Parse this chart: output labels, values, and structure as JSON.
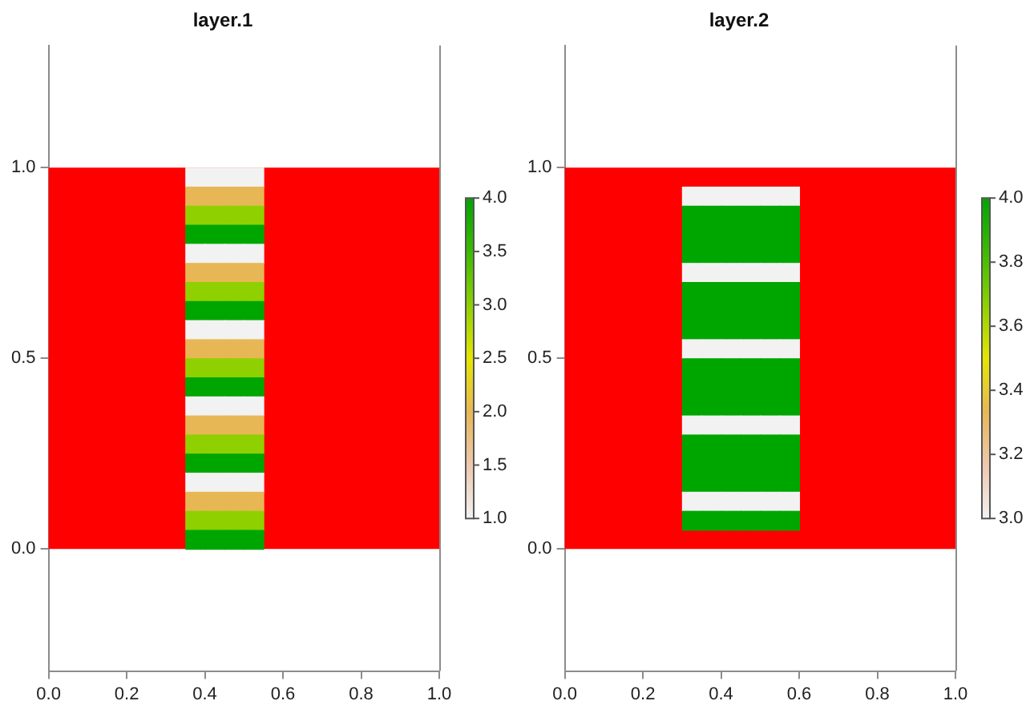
{
  "chart_data": [
    {
      "type": "heatmap",
      "title": "layer.1",
      "colors": [
        "#f2f2f2",
        "#eec8b0",
        "#e8b755",
        "#e6e600",
        "#8fd100",
        "#3dbb00",
        "#00a600"
      ],
      "bands": [
        {
          "axis": "y",
          "from": 0,
          "to": 1,
          "color": "#ff0000"
        }
      ],
      "x": [
        0.025,
        0.075,
        0.125,
        0.175,
        0.225,
        0.275,
        0.325,
        0.375,
        0.425,
        0.475,
        0.525,
        0.575,
        0.625,
        0.675,
        0.725,
        0.775,
        0.825,
        0.875,
        0.925,
        0.975
      ],
      "y": [
        0.975,
        0.925,
        0.875,
        0.825,
        0.775,
        0.725,
        0.675,
        0.625,
        0.575,
        0.525,
        0.475,
        0.425,
        0.375,
        0.325,
        0.275,
        0.225,
        0.175,
        0.125,
        0.075,
        0.025
      ],
      "cells": [
        [
          null,
          null,
          null,
          null,
          null,
          null,
          null,
          1,
          1,
          1,
          1,
          null,
          null,
          null,
          null,
          null,
          null,
          null,
          null,
          null
        ],
        [
          null,
          null,
          null,
          null,
          null,
          null,
          null,
          2,
          2,
          2,
          2,
          null,
          null,
          null,
          null,
          null,
          null,
          null,
          null,
          null
        ],
        [
          null,
          null,
          null,
          null,
          null,
          null,
          null,
          3,
          3,
          3,
          3,
          null,
          null,
          null,
          null,
          null,
          null,
          null,
          null,
          null
        ],
        [
          null,
          null,
          null,
          null,
          null,
          null,
          null,
          4,
          4,
          4,
          4,
          null,
          null,
          null,
          null,
          null,
          null,
          null,
          null,
          null
        ],
        [
          null,
          null,
          null,
          null,
          null,
          null,
          null,
          1,
          1,
          1,
          1,
          null,
          null,
          null,
          null,
          null,
          null,
          null,
          null,
          null
        ],
        [
          null,
          null,
          null,
          null,
          null,
          null,
          null,
          2,
          2,
          2,
          2,
          null,
          null,
          null,
          null,
          null,
          null,
          null,
          null,
          null
        ],
        [
          null,
          null,
          null,
          null,
          null,
          null,
          null,
          3,
          3,
          3,
          3,
          null,
          null,
          null,
          null,
          null,
          null,
          null,
          null,
          null
        ],
        [
          null,
          null,
          null,
          null,
          null,
          null,
          null,
          4,
          4,
          4,
          4,
          null,
          null,
          null,
          null,
          null,
          null,
          null,
          null,
          null
        ],
        [
          null,
          null,
          null,
          null,
          null,
          null,
          null,
          1,
          1,
          1,
          1,
          null,
          null,
          null,
          null,
          null,
          null,
          null,
          null,
          null
        ],
        [
          null,
          null,
          null,
          null,
          null,
          null,
          null,
          2,
          2,
          2,
          2,
          null,
          null,
          null,
          null,
          null,
          null,
          null,
          null,
          null
        ],
        [
          null,
          null,
          null,
          null,
          null,
          null,
          null,
          3,
          3,
          3,
          3,
          null,
          null,
          null,
          null,
          null,
          null,
          null,
          null,
          null
        ],
        [
          null,
          null,
          null,
          null,
          null,
          null,
          null,
          4,
          4,
          4,
          4,
          null,
          null,
          null,
          null,
          null,
          null,
          null,
          null,
          null
        ],
        [
          null,
          null,
          null,
          null,
          null,
          null,
          null,
          1,
          1,
          1,
          1,
          null,
          null,
          null,
          null,
          null,
          null,
          null,
          null,
          null
        ],
        [
          null,
          null,
          null,
          null,
          null,
          null,
          null,
          2,
          2,
          2,
          2,
          null,
          null,
          null,
          null,
          null,
          null,
          null,
          null,
          null
        ],
        [
          null,
          null,
          null,
          null,
          null,
          null,
          null,
          3,
          3,
          3,
          3,
          null,
          null,
          null,
          null,
          null,
          null,
          null,
          null,
          null
        ],
        [
          null,
          null,
          null,
          null,
          null,
          null,
          null,
          4,
          4,
          4,
          4,
          null,
          null,
          null,
          null,
          null,
          null,
          null,
          null,
          null
        ],
        [
          null,
          null,
          null,
          null,
          null,
          null,
          null,
          1,
          1,
          1,
          1,
          null,
          null,
          null,
          null,
          null,
          null,
          null,
          null,
          null
        ],
        [
          null,
          null,
          null,
          null,
          null,
          null,
          null,
          2,
          2,
          2,
          2,
          null,
          null,
          null,
          null,
          null,
          null,
          null,
          null,
          null
        ],
        [
          null,
          null,
          null,
          null,
          null,
          null,
          null,
          3,
          3,
          3,
          3,
          null,
          null,
          null,
          null,
          null,
          null,
          null,
          null,
          null
        ],
        [
          null,
          null,
          null,
          null,
          null,
          null,
          null,
          4,
          4,
          4,
          4,
          null,
          null,
          null,
          null,
          null,
          null,
          null,
          null,
          null
        ]
      ],
      "xlim": [
        0,
        1
      ],
      "ylim": [
        -0.32,
        1.32
      ],
      "xticks": [
        {
          "value": 0,
          "label": "0.0"
        },
        {
          "value": 0.2,
          "label": "0.2"
        },
        {
          "value": 0.4,
          "label": "0.4"
        },
        {
          "value": 0.6,
          "label": "0.6"
        },
        {
          "value": 0.8,
          "label": "0.8"
        },
        {
          "value": 1,
          "label": "1.0"
        }
      ],
      "yticks": [
        {
          "value": 0,
          "label": "0.0"
        },
        {
          "value": 0.5,
          "label": "0.5"
        },
        {
          "value": 1,
          "label": "1.0"
        }
      ],
      "clim": [
        1,
        4
      ],
      "cticks": [
        {
          "value": 1,
          "label": "1.0"
        },
        {
          "value": 1.5,
          "label": "1.5"
        },
        {
          "value": 2,
          "label": "2.0"
        },
        {
          "value": 2.5,
          "label": "2.5"
        },
        {
          "value": 3,
          "label": "3.0"
        },
        {
          "value": 3.5,
          "label": "3.5"
        },
        {
          "value": 4,
          "label": "4.0"
        }
      ]
    },
    {
      "type": "heatmap",
      "title": "layer.2",
      "colors": [
        "#f2f2f2",
        "#eec8b0",
        "#e8b755",
        "#e6e600",
        "#8fd100",
        "#3dbb00",
        "#00a600"
      ],
      "bands": [
        {
          "axis": "y",
          "from": 0,
          "to": 1,
          "color": "#ff0000"
        }
      ],
      "x": [
        0.325,
        0.375,
        0.425,
        0.475,
        0.525,
        0.575
      ],
      "y": [
        0.925,
        0.875,
        0.825,
        0.775,
        0.725,
        0.675,
        0.625,
        0.575,
        0.525,
        0.475,
        0.425,
        0.375,
        0.325,
        0.275,
        0.225,
        0.175,
        0.125,
        0.075
      ],
      "cells": [
        [
          3,
          3,
          3,
          3,
          3,
          3
        ],
        [
          4,
          4,
          4,
          4,
          4,
          4
        ],
        [
          4,
          4,
          4,
          4,
          4,
          4
        ],
        [
          4,
          4,
          4,
          4,
          4,
          4
        ],
        [
          3,
          3,
          3,
          3,
          3,
          3
        ],
        [
          4,
          4,
          4,
          4,
          4,
          4
        ],
        [
          4,
          4,
          4,
          4,
          4,
          4
        ],
        [
          4,
          4,
          4,
          4,
          4,
          4
        ],
        [
          3,
          3,
          3,
          3,
          3,
          3
        ],
        [
          4,
          4,
          4,
          4,
          4,
          4
        ],
        [
          4,
          4,
          4,
          4,
          4,
          4
        ],
        [
          4,
          4,
          4,
          4,
          4,
          4
        ],
        [
          3,
          3,
          3,
          3,
          3,
          3
        ],
        [
          4,
          4,
          4,
          4,
          4,
          4
        ],
        [
          4,
          4,
          4,
          4,
          4,
          4
        ],
        [
          4,
          4,
          4,
          4,
          4,
          4
        ],
        [
          3,
          3,
          3,
          3,
          3,
          3
        ],
        [
          4,
          4,
          4,
          4,
          4,
          4
        ]
      ],
      "xlim": [
        0,
        1
      ],
      "ylim": [
        -0.32,
        1.32
      ],
      "xticks": [
        {
          "value": 0,
          "label": "0.0"
        },
        {
          "value": 0.2,
          "label": "0.2"
        },
        {
          "value": 0.4,
          "label": "0.4"
        },
        {
          "value": 0.6,
          "label": "0.6"
        },
        {
          "value": 0.8,
          "label": "0.8"
        },
        {
          "value": 1,
          "label": "1.0"
        }
      ],
      "yticks": [
        {
          "value": 0,
          "label": "0.0"
        },
        {
          "value": 0.5,
          "label": "0.5"
        },
        {
          "value": 1,
          "label": "1.0"
        }
      ],
      "clim": [
        3,
        4
      ],
      "cticks": [
        {
          "value": 3,
          "label": "3.0"
        },
        {
          "value": 3.2,
          "label": "3.2"
        },
        {
          "value": 3.4,
          "label": "3.4"
        },
        {
          "value": 3.6,
          "label": "3.6"
        },
        {
          "value": 3.8,
          "label": "3.8"
        },
        {
          "value": 4,
          "label": "4.0"
        }
      ]
    }
  ]
}
